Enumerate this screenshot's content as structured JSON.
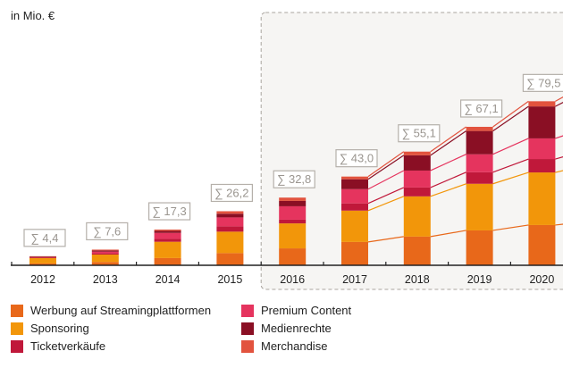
{
  "chart_data": {
    "type": "bar",
    "stacked": true,
    "unit_label": "in Mio. €",
    "title": "",
    "xlabel": "",
    "ylabel": "in Mio. €",
    "ylim": [
      0,
      80
    ],
    "grid": false,
    "forecast_highlight": {
      "from": "2016",
      "to": "2020"
    },
    "categories": [
      "2012",
      "2013",
      "2014",
      "2015",
      "2016",
      "2017",
      "2018",
      "2019",
      "2020"
    ],
    "totals": [
      "∑ 4,4",
      "∑ 7,6",
      "∑ 17,3",
      "∑ 26,2",
      "∑ 32,8",
      "∑ 43,0",
      "∑ 55,1",
      "∑ 67,1",
      "∑ 79,5"
    ],
    "series": [
      {
        "name": "Werbung auf Streamingplattformen",
        "color": "#e8681a",
        "values": [
          0.9,
          1.6,
          3.5,
          5.9,
          8.2,
          11.3,
          13.9,
          16.9,
          19.5
        ]
      },
      {
        "name": "Sponsoring",
        "color": "#f2960a",
        "values": [
          2.6,
          3.6,
          7.9,
          10.4,
          12.1,
          15.2,
          19.5,
          22.6,
          25.5
        ]
      },
      {
        "name": "Ticketverkäufe",
        "color": "#c0183a",
        "values": [
          0.4,
          0.6,
          1.4,
          2.6,
          1.8,
          3.5,
          4.3,
          5.6,
          6.5
        ]
      },
      {
        "name": "Premium Content",
        "color": "#e5345e",
        "values": [
          0.0,
          0.8,
          2.9,
          4.3,
          6.5,
          6.9,
          8.2,
          8.7,
          10.0
        ]
      },
      {
        "name": "Medienrechte",
        "color": "#8a0f24",
        "values": [
          0.3,
          0.6,
          1.0,
          1.8,
          2.6,
          4.8,
          7.4,
          11.3,
          15.5
        ]
      },
      {
        "name": "Merchandise",
        "color": "#e2533e",
        "values": [
          0.2,
          0.4,
          0.6,
          1.2,
          1.6,
          1.3,
          1.8,
          2.0,
          2.5
        ]
      }
    ],
    "legend": "bottom"
  },
  "legend_order": [
    0,
    1,
    2,
    3,
    4,
    5
  ]
}
